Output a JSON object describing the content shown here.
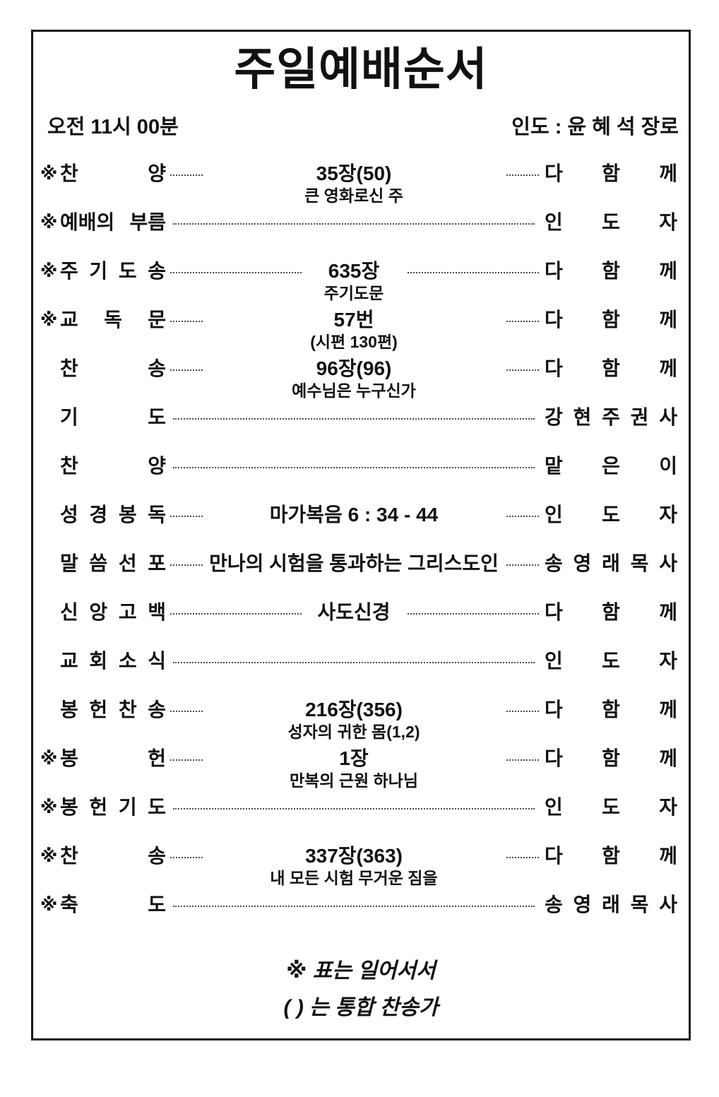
{
  "page": {
    "title": "주일예배순서",
    "time": "오전 11시 00분",
    "leader": "인도 : 윤 혜 석 장로"
  },
  "rows": [
    {
      "star": "※",
      "label": "찬 양",
      "main": "35장(50)",
      "sub": "큰 영화로신 주",
      "dots": "short",
      "person": "다 함 께"
    },
    {
      "star": "※",
      "label": "예배의 부름",
      "main": "",
      "sub": "",
      "dots": "fill",
      "person": "인 도 자"
    },
    {
      "star": "※",
      "label": "주 기 도 송",
      "main": "635장",
      "sub": "주기도문",
      "dots": "medium",
      "person": "다 함 께"
    },
    {
      "star": "※",
      "label": "교 독 문",
      "main": "57번",
      "sub": "(시편 130편)",
      "dots": "short",
      "person": "다 함 께"
    },
    {
      "star": "",
      "label": "찬 송",
      "main": "96장(96)",
      "sub": "예수님은 누구신가",
      "dots": "short",
      "person": "다 함 께"
    },
    {
      "star": "",
      "label": "기 도",
      "main": "",
      "sub": "",
      "dots": "fill",
      "person": "강 현 주 권 사"
    },
    {
      "star": "",
      "label": "찬 양",
      "main": "",
      "sub": "",
      "dots": "fill",
      "person": "맡 은 이"
    },
    {
      "star": "",
      "label": "성 경 봉 독",
      "main": "마가복음 6 : 34 - 44",
      "sub": "",
      "dots": "short",
      "person": "인 도 자"
    },
    {
      "star": "",
      "label": "말 씀 선 포",
      "main": "만나의 시험을 통과하는 그리스도인",
      "sub": "",
      "dots": "short",
      "person": "송 영 래 목 사"
    },
    {
      "star": "",
      "label": "신 앙 고 백",
      "main": "사도신경",
      "sub": "",
      "dots": "medium",
      "person": "다 함 께"
    },
    {
      "star": "",
      "label": "교 회 소 식",
      "main": "",
      "sub": "",
      "dots": "fill",
      "person": "인 도 자"
    },
    {
      "star": "",
      "label": "봉 헌 찬 송",
      "main": "216장(356)",
      "sub": "성자의 귀한 몸(1,2)",
      "dots": "short",
      "person": "다 함 께"
    },
    {
      "star": "※",
      "label": "봉 헌",
      "main": "1장",
      "sub": "만복의 근원 하나님",
      "dots": "short",
      "person": "다 함 께"
    },
    {
      "star": "※",
      "label": "봉 헌 기 도",
      "main": "",
      "sub": "",
      "dots": "fill",
      "person": "인 도 자"
    },
    {
      "star": "※",
      "label": "찬 송",
      "main": "337장(363)",
      "sub": "내 모든 시험 무거운 짐을",
      "dots": "short",
      "person": "다 함 께"
    },
    {
      "star": "※",
      "label": "축 도",
      "main": "",
      "sub": "",
      "dots": "fill",
      "person": "송 영 래 목 사"
    }
  ],
  "footer": {
    "note1": "※ 표는 일어서서",
    "note2": "( ) 는 통합 찬송가"
  },
  "colors": {
    "text": "#111111",
    "border": "#161616",
    "dots": "#4a4a4a",
    "background": "#ffffff"
  }
}
